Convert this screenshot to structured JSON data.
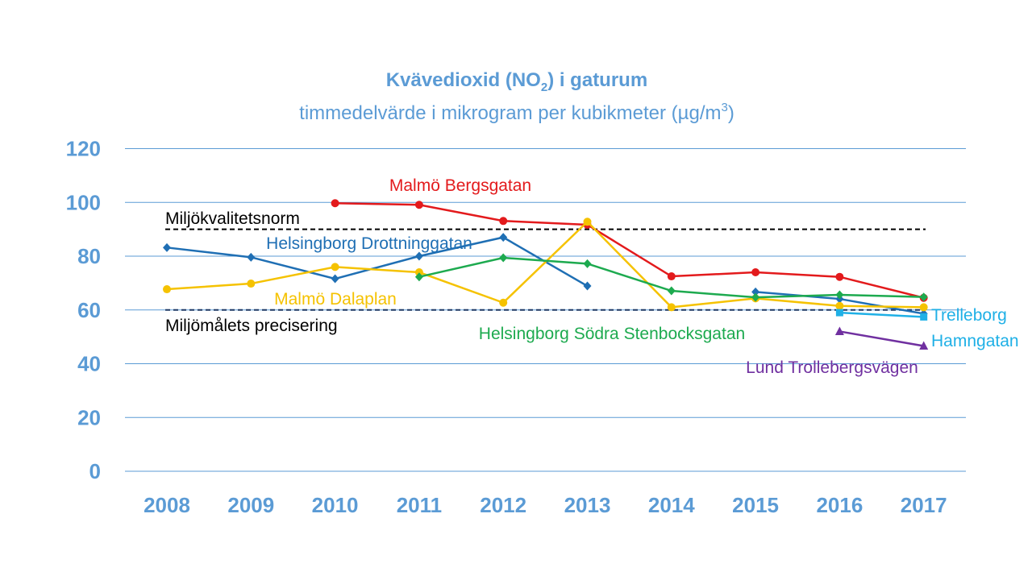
{
  "chart_data": {
    "type": "line",
    "title": "Kvävedioxid (NO",
    "title_sub": "2",
    "title_tail": ") i gaturum",
    "subtitle": "timmedelvärde i mikrogram per kubikmeter (µg/m",
    "subtitle_sup": "3",
    "subtitle_tail": ")",
    "ylim": [
      0,
      120
    ],
    "yticks": [
      "0",
      "20",
      "40",
      "60",
      "80",
      "100",
      "120"
    ],
    "x": [
      "2008",
      "2009",
      "2010",
      "2011",
      "2012",
      "2013",
      "2014",
      "2015",
      "2016",
      "2017"
    ],
    "grid": true,
    "reference_lines": [
      {
        "label": "Miljökvalitetsnorm",
        "value": 90,
        "color": "#000000"
      },
      {
        "label": "Miljömålets precisering",
        "value": 60,
        "color": "#1f3864"
      }
    ],
    "series": [
      {
        "name": "Malmö Bergsgatan",
        "color": "#e31a1c",
        "marker": "circle",
        "values": [
          null,
          null,
          99.7,
          99.1,
          93.1,
          91.7,
          72.5,
          74.0,
          72.3,
          64.5
        ]
      },
      {
        "name": "Helsingborg Drottninggatan",
        "color": "#1f6fb4",
        "marker": "diamond",
        "values": [
          83.2,
          79.6,
          71.6,
          80.0,
          87.0,
          68.9,
          null,
          66.7,
          64.1,
          58.6
        ]
      },
      {
        "name": "Malmö Dalaplan",
        "color": "#f5c200",
        "marker": "circle",
        "values": [
          67.7,
          69.8,
          76.0,
          74.0,
          62.7,
          92.8,
          61.0,
          64.3,
          61.5,
          61.0
        ]
      },
      {
        "name": "Helsingborg Södra Stenbocksgatan",
        "color": "#1daa4f",
        "marker": "diamond",
        "values": [
          null,
          null,
          null,
          72.3,
          79.4,
          77.2,
          67.1,
          64.7,
          65.6,
          64.8
        ]
      },
      {
        "name": "Trelleborg Hamngatan",
        "label_lines": [
          "Trelleborg",
          "Hamngatan"
        ],
        "color": "#1fb0e6",
        "marker": "square",
        "values": [
          null,
          null,
          null,
          null,
          null,
          null,
          null,
          null,
          59.0,
          57.4
        ]
      },
      {
        "name": "Lund Trollebergsvägen",
        "color": "#7030a0",
        "marker": "triangle",
        "values": [
          null,
          null,
          null,
          null,
          null,
          null,
          null,
          null,
          52.0,
          46.6
        ]
      }
    ],
    "colors": {
      "axis_text": "#5b9bd5",
      "grid": "#5b9bd5"
    }
  }
}
